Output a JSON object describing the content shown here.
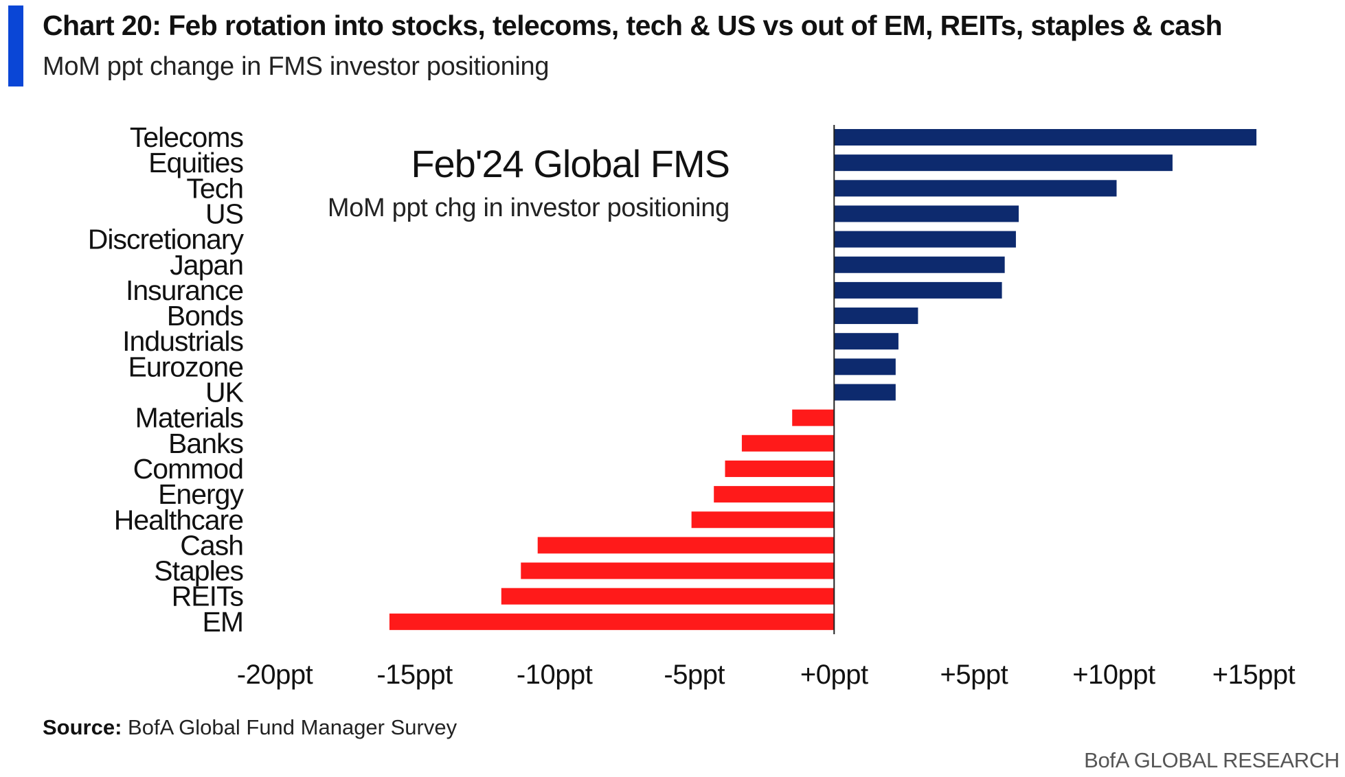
{
  "header": {
    "title": "Chart 20: Feb rotation into stocks, telecoms, tech & US vs out of EM, REITs, staples & cash",
    "subtitle": "MoM ppt change in FMS investor positioning",
    "accent_color": "#0a46d6"
  },
  "annotation": {
    "title": "Feb'24 Global FMS",
    "subtitle": "MoM ppt chg in investor positioning"
  },
  "footer": {
    "source_label": "Source:",
    "source_text": "BofA Global Fund Manager Survey",
    "brand": "BofA GLOBAL RESEARCH"
  },
  "chart_data": {
    "type": "bar",
    "orientation": "horizontal",
    "title": "Feb'24 Global FMS",
    "subtitle": "MoM ppt chg in investor positioning",
    "categories": [
      "Telecoms",
      "Equities",
      "Tech",
      "US",
      "Discretionary",
      "Japan",
      "Insurance",
      "Bonds",
      "Industrials",
      "Eurozone",
      "UK",
      "Materials",
      "Banks",
      "Commod",
      "Energy",
      "Healthcare",
      "Cash",
      "Staples",
      "REITs",
      "EM"
    ],
    "values": [
      15.1,
      12.1,
      10.1,
      6.6,
      6.5,
      6.1,
      6.0,
      3.0,
      2.3,
      2.2,
      2.2,
      -1.5,
      -3.3,
      -3.9,
      -4.3,
      -5.1,
      -10.6,
      -11.2,
      -11.9,
      -15.9
    ],
    "xlim": [
      -20,
      15
    ],
    "ticks": [
      -20,
      -15,
      -10,
      -5,
      0,
      5,
      10,
      15
    ],
    "tick_labels": [
      "-20ppt",
      "-15ppt",
      "-10ppt",
      "-5ppt",
      "+0ppt",
      "+5ppt",
      "+10ppt",
      "+15ppt"
    ],
    "colors": {
      "positive": "#0d2a6e",
      "negative": "#ff1a1a",
      "axis": "#222222"
    },
    "legend": "none",
    "grid": false
  }
}
